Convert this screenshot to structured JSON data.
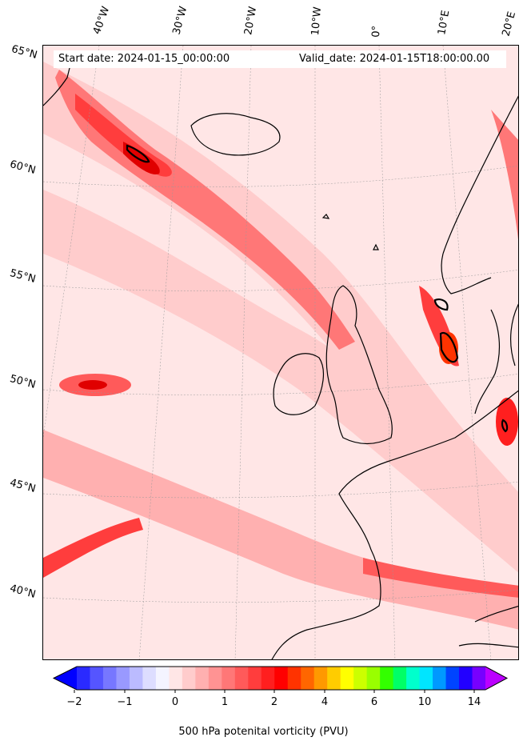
{
  "header": {
    "start_date": "Start date: 2024-01-15_00:00:00",
    "valid_date": "Valid_date: 2024-01-15T18:00:00.00"
  },
  "longitude_labels": [
    "40°W",
    "30°W",
    "20°W",
    "10°W",
    "0°",
    "10°E",
    "20°E"
  ],
  "latitude_labels": [
    "65°N",
    "60°N",
    "55°N",
    "50°N",
    "45°N",
    "40°N"
  ],
  "colorbar": {
    "title": "500 hPa potenital vorticity (PVU)",
    "tick_labels": [
      "−2",
      "−1",
      "0",
      "1",
      "2",
      "4",
      "6",
      "10",
      "14"
    ],
    "tick_values": [
      -2,
      -1,
      0,
      1,
      2,
      4,
      6,
      10,
      14
    ],
    "extend": "both",
    "colors": [
      "#0000ff",
      "#2a2aff",
      "#5555ff",
      "#7777ff",
      "#9999ff",
      "#bbbbff",
      "#ddddff",
      "#f4f4ff",
      "#ffe6e6",
      "#ffcccc",
      "#ffb0b0",
      "#ff9393",
      "#ff7777",
      "#ff5a5a",
      "#ff3d3d",
      "#ff1f1f",
      "#ff0000",
      "#ff3300",
      "#ff6600",
      "#ff9900",
      "#ffcc00",
      "#ffff00",
      "#ccff00",
      "#99ff00",
      "#33ff00",
      "#00ff66",
      "#00ffcc",
      "#00e5ff",
      "#0099ff",
      "#0044ff",
      "#2200ff",
      "#7700ff",
      "#bb00ff"
    ]
  }
}
